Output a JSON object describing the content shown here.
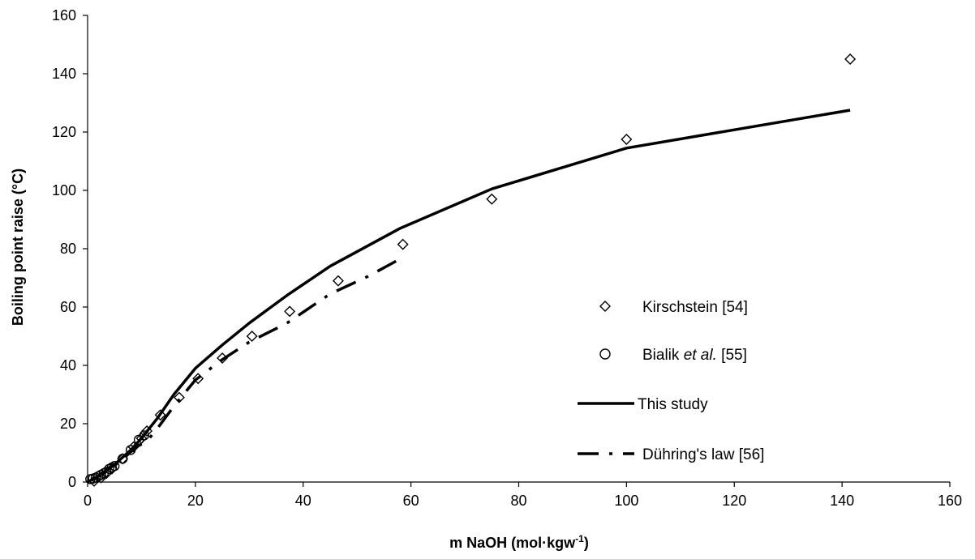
{
  "chart_data": {
    "type": "scatter",
    "xlabel": "m NaOH (mol·kgw",
    "xlabel_superscript": "-1",
    "xlabel_close": ")",
    "ylabel": "Boiling point raise (°C)",
    "xlim": [
      0,
      160
    ],
    "ylim": [
      0,
      160
    ],
    "x_ticks": [
      0,
      20,
      40,
      60,
      80,
      100,
      120,
      140,
      160
    ],
    "y_ticks": [
      0,
      20,
      40,
      60,
      80,
      100,
      120,
      140,
      160
    ],
    "grid": false,
    "legend_position": "right-middle",
    "series": [
      {
        "name": "Kirschstein [54]",
        "marker": "diamond",
        "points": [
          [
            1.2,
            0.3
          ],
          [
            2.5,
            1.5
          ],
          [
            3.5,
            3
          ],
          [
            4.5,
            4.5
          ],
          [
            6.5,
            8
          ],
          [
            8.5,
            12
          ],
          [
            10,
            15
          ],
          [
            11,
            17.5
          ],
          [
            13.5,
            23
          ],
          [
            17,
            29
          ],
          [
            20.5,
            35.5
          ],
          [
            25,
            42.5
          ],
          [
            30.5,
            50
          ],
          [
            37.5,
            58.5
          ],
          [
            46.5,
            69
          ],
          [
            58.5,
            81.5
          ],
          [
            75,
            97
          ],
          [
            100,
            117.5
          ],
          [
            141.5,
            145
          ]
        ]
      },
      {
        "name": "Bialik",
        "name_italic": "et al.",
        "name_suffix": "[55]",
        "marker": "circle",
        "points": [
          [
            0.5,
            1
          ],
          [
            1,
            1.2
          ],
          [
            1.5,
            1.5
          ],
          [
            2,
            2
          ],
          [
            2.5,
            2.5
          ],
          [
            3,
            3
          ],
          [
            3.5,
            3.5
          ],
          [
            4,
            4.5
          ],
          [
            4.5,
            5
          ],
          [
            5,
            5.5
          ],
          [
            6.5,
            8
          ],
          [
            8,
            11
          ],
          [
            9.5,
            14.5
          ],
          [
            10.5,
            16
          ]
        ]
      },
      {
        "name": "This study",
        "line": "solid",
        "points": [
          [
            0,
            0
          ],
          [
            2,
            2
          ],
          [
            5,
            6
          ],
          [
            8,
            11
          ],
          [
            10,
            15
          ],
          [
            13,
            22
          ],
          [
            16,
            30
          ],
          [
            20,
            39
          ],
          [
            25,
            47
          ],
          [
            30,
            54.5
          ],
          [
            37,
            64
          ],
          [
            45,
            74
          ],
          [
            58,
            87
          ],
          [
            75,
            100.5
          ],
          [
            100,
            114.5
          ],
          [
            141.5,
            127.5
          ]
        ]
      },
      {
        "name": "Dühring's law [56]",
        "line": "dash-dot",
        "points": [
          [
            0,
            0
          ],
          [
            3,
            3
          ],
          [
            6,
            7
          ],
          [
            9,
            12
          ],
          [
            11,
            14
          ],
          [
            13,
            18.5
          ],
          [
            16,
            26
          ],
          [
            20,
            35
          ],
          [
            25,
            42
          ],
          [
            30,
            48
          ],
          [
            37,
            54.5
          ],
          [
            45,
            64.5
          ],
          [
            52,
            70.5
          ],
          [
            58.5,
            77
          ]
        ]
      }
    ]
  }
}
